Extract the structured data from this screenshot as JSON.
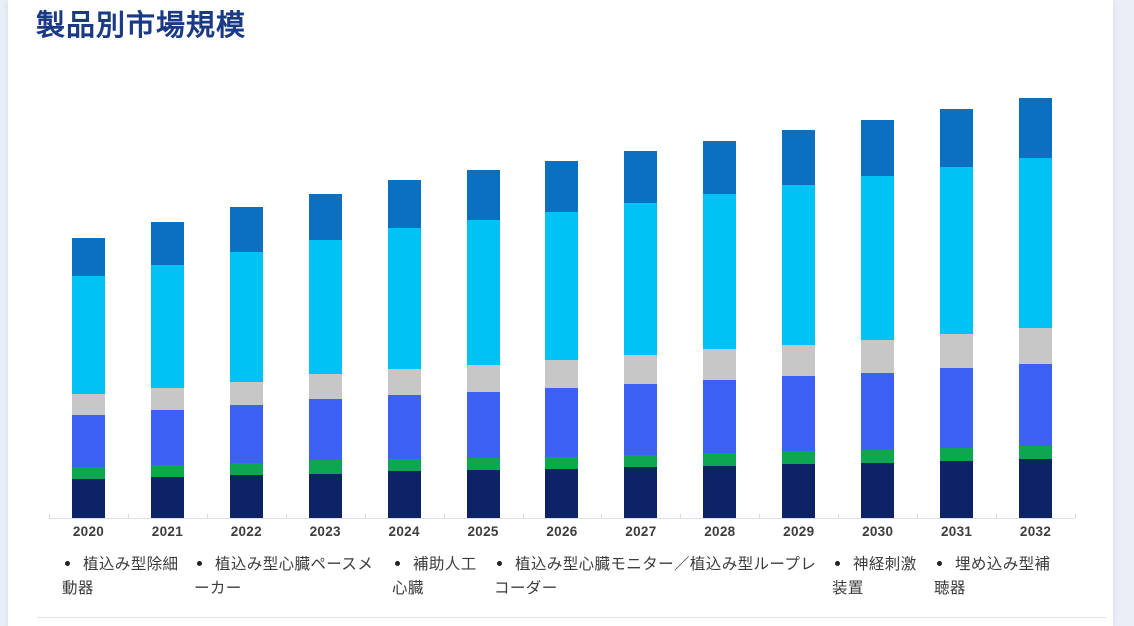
{
  "page": {
    "title": "製品別市場規模",
    "title_color": "#1b3a85",
    "background_color": "#e9eef7",
    "card_background_color": "#ffffff"
  },
  "chart_data": {
    "type": "bar",
    "stacked": true,
    "title": "製品別市場規模",
    "xlabel": "",
    "ylabel": "",
    "y_axis_visible": false,
    "grid": false,
    "legend_position": "bottom",
    "value_units": "relative units (no numeric axis shown; values estimated from bar pixel heights)",
    "categories": [
      "2020",
      "2021",
      "2022",
      "2023",
      "2024",
      "2025",
      "2026",
      "2027",
      "2028",
      "2029",
      "2030",
      "2031",
      "2032"
    ],
    "series": [
      {
        "name": "植込み型除細動器",
        "color": "#0d2365",
        "values": [
          39,
          41,
          43,
          44,
          47,
          48,
          49,
          51,
          52,
          54,
          55,
          57,
          59
        ]
      },
      {
        "name": "植込み型心臓ペースメーカー",
        "color": "#0ca750",
        "values": [
          12,
          12,
          12,
          14,
          12,
          12,
          12,
          12,
          13,
          13,
          13,
          13,
          13
        ]
      },
      {
        "name": "補助人工心臓",
        "color": "#3d61f4",
        "values": [
          52,
          55,
          58,
          61,
          64,
          66,
          69,
          71,
          73,
          75,
          77,
          80,
          82
        ]
      },
      {
        "name": "植込み型心臓モニター／植込み型ループレコーダー",
        "color": "#c7c7c8",
        "values": [
          21,
          22,
          23,
          25,
          26,
          27,
          28,
          29,
          31,
          31,
          33,
          34,
          36
        ]
      },
      {
        "name": "神経刺激装置",
        "color": "#00c3f4",
        "values": [
          118,
          123,
          130,
          134,
          141,
          145,
          148,
          152,
          155,
          160,
          164,
          167,
          170
        ]
      },
      {
        "name": "埋め込み型補聴器",
        "color": "#0c70c0",
        "values": [
          38,
          43,
          45,
          46,
          48,
          50,
          51,
          52,
          53,
          55,
          56,
          58,
          60
        ]
      }
    ],
    "totals": [
      280,
      296,
      311,
      324,
      338,
      348,
      357,
      367,
      377,
      388,
      398,
      409,
      420
    ]
  }
}
